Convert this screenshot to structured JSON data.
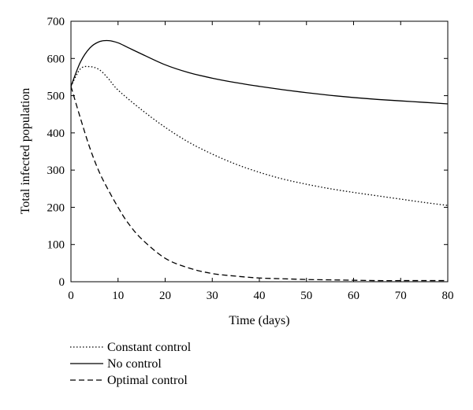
{
  "chart_data": {
    "type": "line",
    "xlabel": "Time (days)",
    "ylabel": "Total infected population",
    "xlim": [
      0,
      80
    ],
    "ylim": [
      0,
      700
    ],
    "xticks": [
      0,
      10,
      20,
      30,
      40,
      50,
      60,
      70,
      80
    ],
    "yticks": [
      0,
      100,
      200,
      300,
      400,
      500,
      600,
      700
    ],
    "grid": false,
    "legend_position": "below-plot",
    "series": [
      {
        "name": "Constant control",
        "style": "dotted",
        "x": [
          0,
          2,
          4,
          6,
          8,
          10,
          15,
          20,
          25,
          30,
          35,
          40,
          45,
          50,
          55,
          60,
          65,
          70,
          75,
          80
        ],
        "y": [
          525,
          572,
          578,
          570,
          545,
          515,
          462,
          415,
          375,
          343,
          316,
          294,
          276,
          262,
          250,
          240,
          231,
          222,
          213,
          205
        ]
      },
      {
        "name": "No control",
        "style": "solid",
        "x": [
          0,
          2,
          4,
          6,
          8,
          10,
          12,
          15,
          20,
          25,
          30,
          35,
          40,
          45,
          50,
          55,
          60,
          65,
          70,
          75,
          80
        ],
        "y": [
          525,
          590,
          628,
          645,
          648,
          642,
          630,
          612,
          583,
          562,
          547,
          535,
          525,
          516,
          508,
          501,
          495,
          490,
          486,
          482,
          478
        ]
      },
      {
        "name": "Optimal control",
        "style": "dashed",
        "x": [
          0,
          2,
          4,
          6,
          8,
          10,
          12,
          15,
          20,
          25,
          30,
          35,
          40,
          45,
          50,
          55,
          60,
          65,
          70,
          75,
          80
        ],
        "y": [
          525,
          440,
          360,
          295,
          245,
          200,
          160,
          115,
          63,
          37,
          22,
          15,
          10,
          8,
          6,
          5,
          4,
          3,
          3,
          3,
          3
        ]
      }
    ]
  }
}
